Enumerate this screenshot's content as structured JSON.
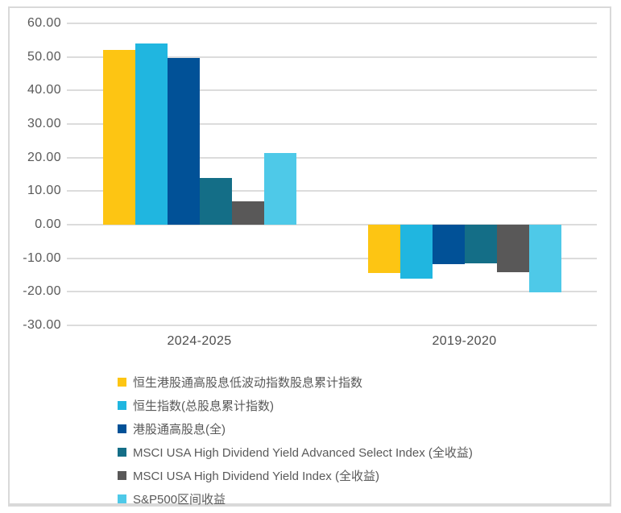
{
  "chart_data": {
    "type": "bar",
    "title": "",
    "xlabel": "",
    "ylabel": "",
    "categories": [
      "2024-2025",
      "2019-2020"
    ],
    "series": [
      {
        "name": "恒生港股通高股息低波动指数股息累计指数",
        "color": "#fdc513",
        "values": [
          52.0,
          -14.3
        ]
      },
      {
        "name": "恒生指数(总股息累计指数)",
        "color": "#20b6e0",
        "values": [
          54.0,
          -16.0
        ]
      },
      {
        "name": "港股通高股息(全)",
        "color": "#015197",
        "values": [
          49.7,
          -11.8
        ]
      },
      {
        "name": "MSCI USA High Dividend Yield Advanced Select Index (全收益)",
        "color": "#146e87",
        "values": [
          14.0,
          -11.4
        ]
      },
      {
        "name": "MSCI USA High Dividend Yield Index (全收益)",
        "color": "#595858",
        "values": [
          7.0,
          -14.2
        ]
      },
      {
        "name": "S&P500区间收益",
        "color": "#4ec9e8",
        "values": [
          21.3,
          -20.1
        ]
      }
    ],
    "y_axis": {
      "min": -30,
      "max": 60,
      "step": 10,
      "tick_labels": [
        "60.00",
        "50.00",
        "40.00",
        "30.00",
        "20.00",
        "10.00",
        "0.00",
        "-10.00",
        "-20.00",
        "-30.00"
      ]
    },
    "grid": true,
    "legend_position": "bottom-left",
    "colors": {
      "gridline": "#dcdcdc",
      "axis_text": "#595959",
      "category_text": "#4d4d4d",
      "card_border": "#d9d9d9",
      "background": "#ffffff"
    }
  }
}
